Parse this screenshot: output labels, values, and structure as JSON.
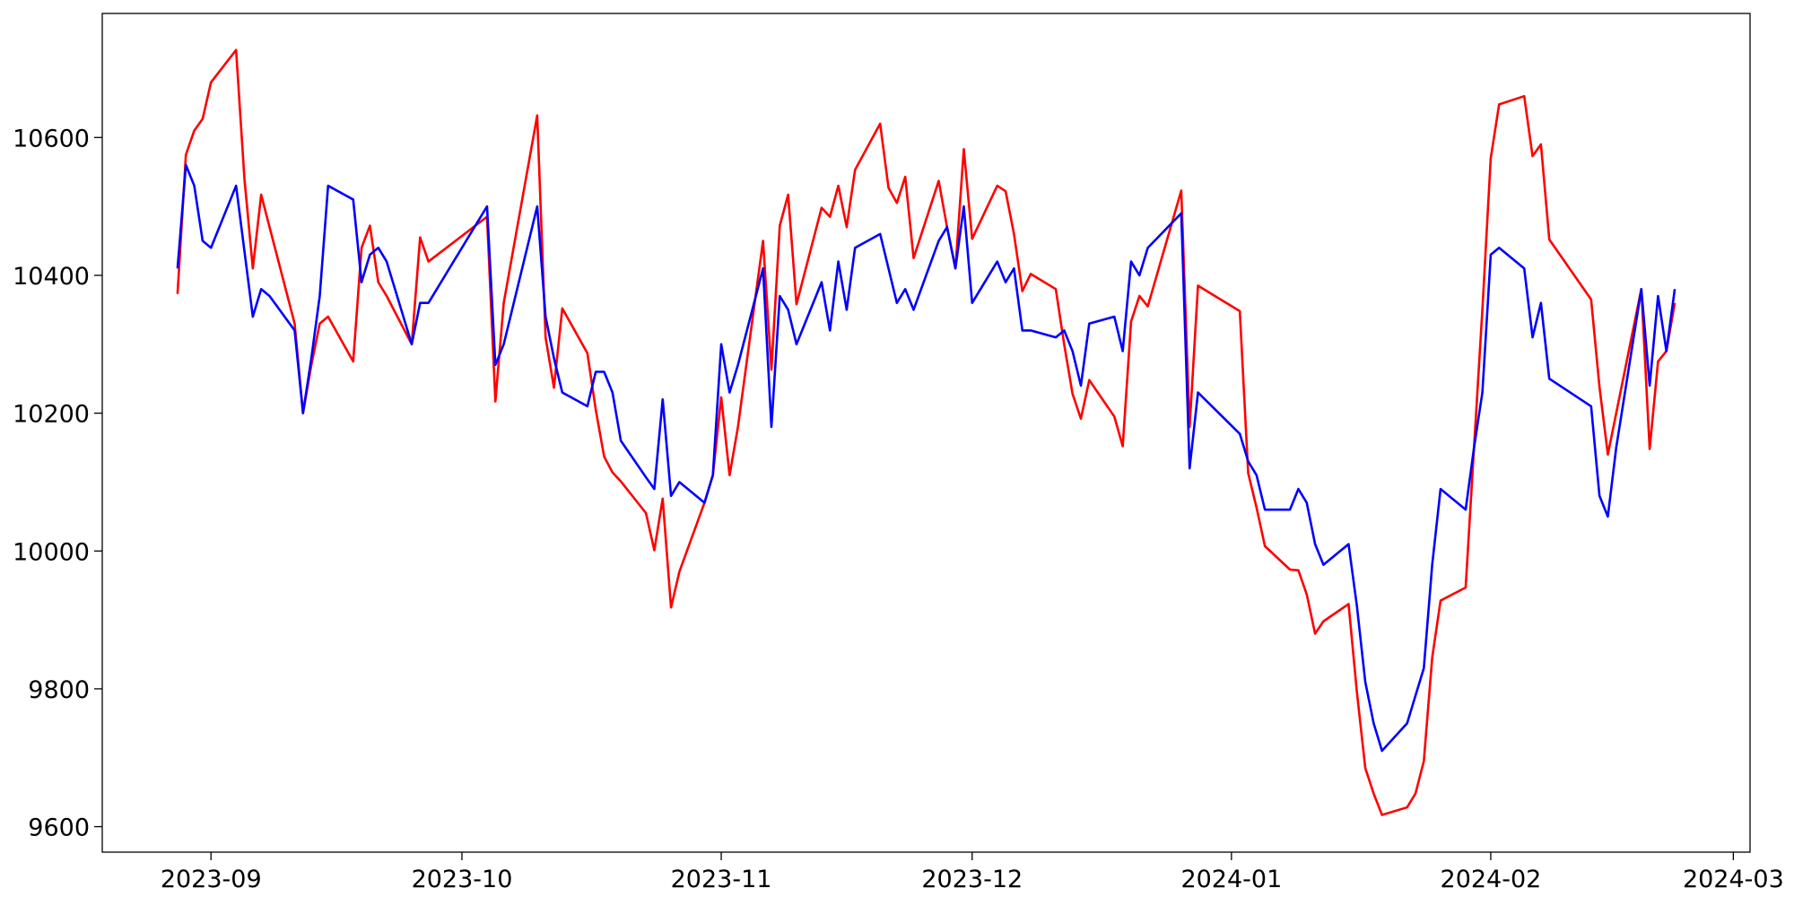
{
  "chart_data": {
    "type": "line",
    "x": [
      "2023-08-28",
      "2023-08-29",
      "2023-08-30",
      "2023-08-31",
      "2023-09-01",
      "2023-09-04",
      "2023-09-05",
      "2023-09-06",
      "2023-09-07",
      "2023-09-08",
      "2023-09-11",
      "2023-09-12",
      "2023-09-13",
      "2023-09-14",
      "2023-09-15",
      "2023-09-18",
      "2023-09-19",
      "2023-09-20",
      "2023-09-21",
      "2023-09-22",
      "2023-09-25",
      "2023-09-26",
      "2023-09-27",
      "2023-10-04",
      "2023-10-05",
      "2023-10-06",
      "2023-10-10",
      "2023-10-11",
      "2023-10-12",
      "2023-10-13",
      "2023-10-16",
      "2023-10-17",
      "2023-10-18",
      "2023-10-19",
      "2023-10-20",
      "2023-10-23",
      "2023-10-24",
      "2023-10-25",
      "2023-10-26",
      "2023-10-27",
      "2023-10-30",
      "2023-10-31",
      "2023-11-01",
      "2023-11-02",
      "2023-11-03",
      "2023-11-06",
      "2023-11-07",
      "2023-11-08",
      "2023-11-09",
      "2023-11-10",
      "2023-11-13",
      "2023-11-14",
      "2023-11-15",
      "2023-11-16",
      "2023-11-17",
      "2023-11-20",
      "2023-11-21",
      "2023-11-22",
      "2023-11-23",
      "2023-11-24",
      "2023-11-27",
      "2023-11-28",
      "2023-11-29",
      "2023-11-30",
      "2023-12-01",
      "2023-12-04",
      "2023-12-05",
      "2023-12-06",
      "2023-12-07",
      "2023-12-08",
      "2023-12-11",
      "2023-12-12",
      "2023-12-13",
      "2023-12-14",
      "2023-12-15",
      "2023-12-18",
      "2023-12-19",
      "2023-12-20",
      "2023-12-21",
      "2023-12-22",
      "2023-12-26",
      "2023-12-27",
      "2023-12-28",
      "2024-01-02",
      "2024-01-03",
      "2024-01-04",
      "2024-01-05",
      "2024-01-08",
      "2024-01-09",
      "2024-01-10",
      "2024-01-11",
      "2024-01-12",
      "2024-01-15",
      "2024-01-16",
      "2024-01-17",
      "2024-01-18",
      "2024-01-19",
      "2024-01-22",
      "2024-01-23",
      "2024-01-24",
      "2024-01-25",
      "2024-01-26",
      "2024-01-29",
      "2024-01-30",
      "2024-01-31",
      "2024-02-01",
      "2024-02-02",
      "2024-02-05",
      "2024-02-06",
      "2024-02-07",
      "2024-02-08",
      "2024-02-13",
      "2024-02-14",
      "2024-02-15",
      "2024-02-16",
      "2024-02-19",
      "2024-02-20",
      "2024-02-21",
      "2024-02-22",
      "2024-02-23"
    ],
    "series": [
      {
        "color": "#ff0000",
        "values": [
          10373,
          10575,
          10610,
          10627,
          10680,
          10727,
          10540,
          10410,
          10517,
          10470,
          10330,
          10200,
          10270,
          10330,
          10340,
          10275,
          10440,
          10472,
          10390,
          10370,
          10300,
          10455,
          10420,
          10485,
          10217,
          10360,
          10632,
          10310,
          10237,
          10352,
          10287,
          10205,
          10137,
          10114,
          10101,
          10055,
          10001,
          10076,
          9918,
          9970,
          10070,
          10110,
          10223,
          10110,
          10180,
          10450,
          10263,
          10472,
          10517,
          10358,
          10498,
          10485,
          10530,
          10470,
          10553,
          10620,
          10527,
          10505,
          10543,
          10425,
          10537,
          10470,
          10410,
          10583,
          10453,
          10530,
          10522,
          10460,
          10377,
          10402,
          10380,
          10300,
          10228,
          10192,
          10248,
          10195,
          10152,
          10333,
          10370,
          10355,
          10523,
          10180,
          10385,
          10348,
          10113,
          10063,
          10007,
          9973,
          9972,
          9937,
          9880,
          9898,
          9923,
          9795,
          9685,
          9648,
          9617,
          9628,
          9648,
          9695,
          9845,
          9928,
          9947,
          10150,
          10350,
          10570,
          10648,
          10660,
          10573,
          10590,
          10452,
          10365,
          10238,
          10140,
          10200,
          10380,
          10148,
          10275,
          10290,
          10360
        ]
      },
      {
        "color": "#0000ff",
        "values": [
          10410,
          10560,
          10530,
          10450,
          10440,
          10530,
          10435,
          10340,
          10380,
          10370,
          10320,
          10200,
          10280,
          10370,
          10530,
          10510,
          10390,
          10430,
          10440,
          10420,
          10300,
          10360,
          10360,
          10500,
          10270,
          10300,
          10500,
          10340,
          10280,
          10230,
          10210,
          10260,
          10260,
          10230,
          10160,
          10107,
          10090,
          10220,
          10080,
          10100,
          10070,
          10110,
          10300,
          10230,
          10270,
          10410,
          10180,
          10370,
          10350,
          10300,
          10390,
          10320,
          10420,
          10350,
          10440,
          10460,
          10410,
          10360,
          10380,
          10350,
          10450,
          10470,
          10410,
          10500,
          10360,
          10420,
          10390,
          10410,
          10320,
          10320,
          10310,
          10320,
          10290,
          10240,
          10330,
          10340,
          10290,
          10420,
          10400,
          10440,
          10490,
          10120,
          10230,
          10170,
          10130,
          10110,
          10060,
          10060,
          10090,
          10070,
          10010,
          9980,
          10010,
          9920,
          9810,
          9750,
          9710,
          9750,
          9790,
          9830,
          9980,
          10090,
          10060,
          10150,
          10230,
          10430,
          10440,
          10410,
          10310,
          10360,
          10250,
          10210,
          10080,
          10050,
          10150,
          10380,
          10240,
          10370,
          10290,
          10380
        ]
      }
    ],
    "xlim": [
      "2023-08-19",
      "2024-03-03"
    ],
    "xticks": [
      {
        "value": "2023-09-01",
        "label": "2023-09"
      },
      {
        "value": "2023-10-01",
        "label": "2023-10"
      },
      {
        "value": "2023-11-01",
        "label": "2023-11"
      },
      {
        "value": "2023-12-01",
        "label": "2023-12"
      },
      {
        "value": "2024-01-01",
        "label": "2024-01"
      },
      {
        "value": "2024-02-01",
        "label": "2024-02"
      },
      {
        "value": "2024-03-01",
        "label": "2024-03"
      }
    ],
    "ylim": [
      9563,
      10780
    ],
    "yticks": [
      9600,
      9800,
      10000,
      10200,
      10400,
      10600
    ],
    "grid": false
  }
}
